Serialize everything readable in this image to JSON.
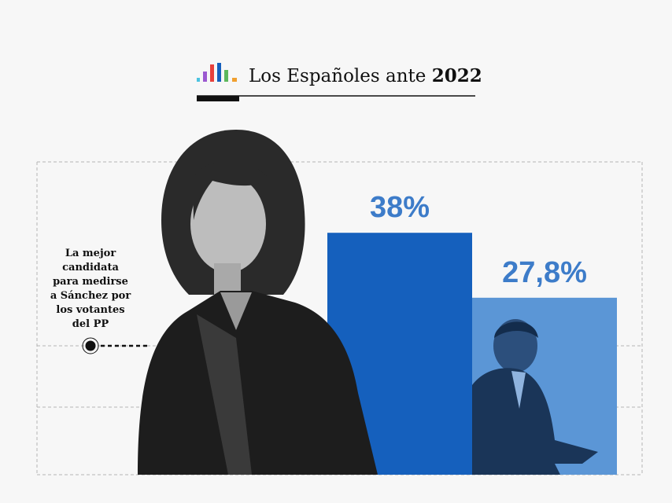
{
  "chart_data": {
    "type": "bar",
    "title": "Los Españoles ante",
    "title_bold": "2022",
    "annotation": [
      "La mejor",
      "candidata",
      "para medirse",
      "a Sánchez por",
      "los votantes",
      "del PP"
    ],
    "values": [
      38,
      27.8
    ],
    "value_labels": [
      "38%",
      "27,8%"
    ],
    "colors": [
      "#1560bd",
      "#5b96d6"
    ],
    "label_color": "#3d7cc9",
    "ylim": [
      0,
      50
    ]
  }
}
